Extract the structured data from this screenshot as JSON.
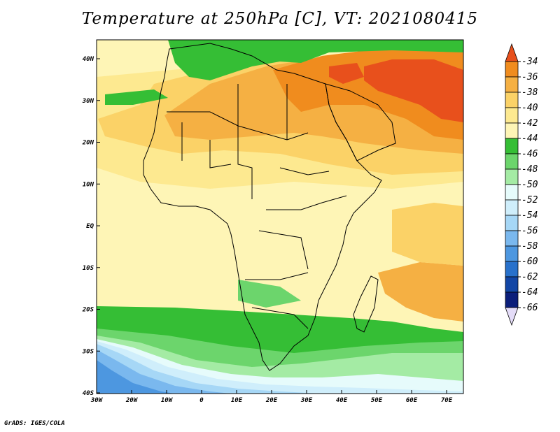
{
  "title": "Temperature at 250hPa [C], VT: 2021080415",
  "footer": "GrADS: IGES/COLA",
  "map": {
    "variable": "Temperature",
    "level": "250hPa",
    "units": "C",
    "valid_time": "2021080415",
    "lon_range": [
      -30,
      76
    ],
    "lat_range": [
      -40,
      45
    ],
    "x_ticks": [
      "30W",
      "20W",
      "10W",
      "0",
      "10E",
      "20E",
      "30E",
      "40E",
      "50E",
      "60E",
      "70E"
    ],
    "y_ticks": [
      "40N",
      "30N",
      "20N",
      "10N",
      "EQ",
      "10S",
      "20S",
      "30S",
      "40S"
    ]
  },
  "colorbar": {
    "labels": [
      "-34",
      "-36",
      "-38",
      "-40",
      "-42",
      "-44",
      "-46",
      "-48",
      "-50",
      "-52",
      "-54",
      "-56",
      "-58",
      "-60",
      "-62",
      "-64",
      "-66"
    ],
    "colors": [
      "#e8501c",
      "#f08c1e",
      "#f5b043",
      "#fbd267",
      "#fde990",
      "#fef5b6",
      "#35be35",
      "#6cd56c",
      "#a4eba4",
      "#e6fbfb",
      "#cfeefb",
      "#a6d7f6",
      "#7ab8ee",
      "#4d97e0",
      "#2871cb",
      "#1246a5",
      "#0b1e7a",
      "#e4dcf8"
    ],
    "top_color": "#e8501c",
    "bottom_color": "#e4dcf8"
  }
}
